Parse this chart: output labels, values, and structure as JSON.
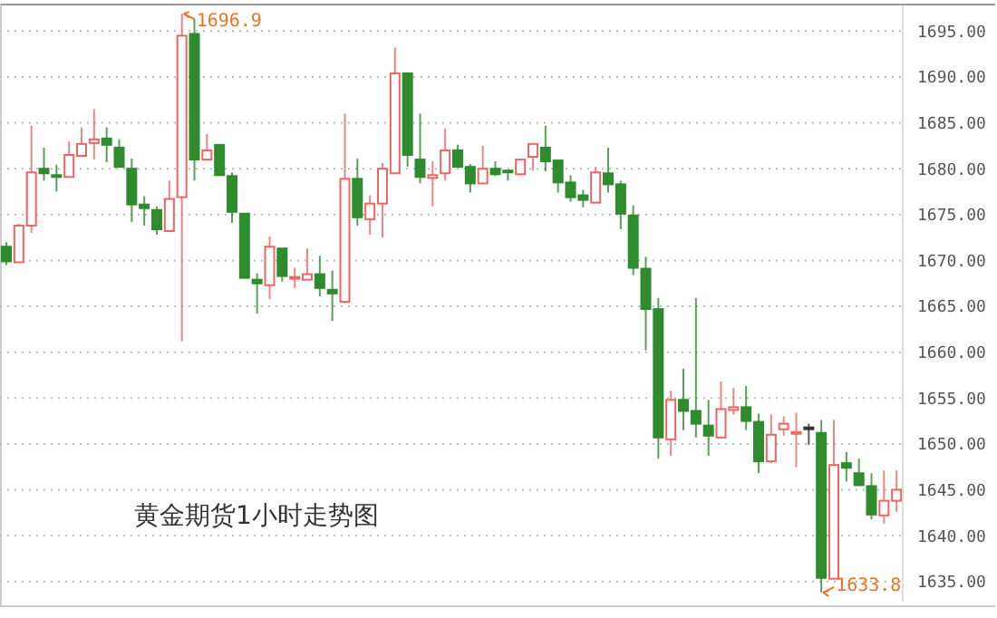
{
  "chart_data": {
    "type": "candlestick",
    "title": "黄金期货1小时走势图",
    "categories": [
      null,
      null,
      null,
      null,
      null,
      null,
      null,
      null,
      null,
      null,
      null,
      null,
      null,
      null,
      null,
      null,
      null,
      null,
      null,
      null,
      null,
      null,
      null,
      null,
      null,
      null,
      null,
      null,
      null,
      null,
      null,
      null,
      null,
      null,
      null,
      null,
      null,
      null,
      null,
      null,
      null,
      null,
      null,
      null,
      null,
      null,
      null,
      null,
      null,
      null,
      null,
      null,
      null,
      null,
      null,
      null,
      null,
      null,
      null,
      null,
      null,
      null,
      null,
      null,
      null,
      null,
      null,
      null,
      null,
      null,
      null,
      null
    ],
    "ohlc": [
      [
        1671.5,
        1672,
        1669.5,
        1669.9
      ],
      [
        1669.8,
        1674,
        1669.8,
        1673.8
      ],
      [
        1673.8,
        1684.7,
        1673,
        1679.6
      ],
      [
        1680,
        1682.3,
        1678.7,
        1679.5
      ],
      [
        1679.3,
        1680.4,
        1677.5,
        1679.1
      ],
      [
        1679.1,
        1683,
        1679.1,
        1681.5
      ],
      [
        1681.4,
        1684.5,
        1681.4,
        1682.7
      ],
      [
        1682.8,
        1686.5,
        1681,
        1683.2
      ],
      [
        1683.3,
        1684.5,
        1680.7,
        1682.6
      ],
      [
        1682.3,
        1683.2,
        1680.2,
        1680.2
      ],
      [
        1680,
        1681.1,
        1674.2,
        1676.1
      ],
      [
        1676.1,
        1677,
        1673.8,
        1675.7
      ],
      [
        1675.5,
        1675.9,
        1672.8,
        1673.4
      ],
      [
        1673.2,
        1678.7,
        1673.2,
        1676.7
      ],
      [
        1676.9,
        1696.9,
        1661.2,
        1694.5
      ],
      [
        1694.7,
        1696.3,
        1678.7,
        1681
      ],
      [
        1681,
        1683.8,
        1681,
        1682
      ],
      [
        1682.6,
        1682.6,
        1679.3,
        1679.3
      ],
      [
        1679.2,
        1679.6,
        1674.1,
        1675.3
      ],
      [
        1675.1,
        1675.1,
        1668.1,
        1668.1
      ],
      [
        1667.9,
        1668.6,
        1664.2,
        1667.5
      ],
      [
        1667.3,
        1672.6,
        1665.8,
        1671.5
      ],
      [
        1671.3,
        1671.3,
        1667.7,
        1668.3
      ],
      [
        1668,
        1669.2,
        1667,
        1668.2
      ],
      [
        1667.9,
        1671.3,
        1667.9,
        1668.5
      ],
      [
        1668.5,
        1670.5,
        1666.1,
        1667
      ],
      [
        1666.8,
        1668.9,
        1663.4,
        1666.4
      ],
      [
        1665.5,
        1686,
        1665.3,
        1678.9
      ],
      [
        1678.9,
        1681.1,
        1673.8,
        1674.7
      ],
      [
        1674.5,
        1677.1,
        1672.8,
        1676.2
      ],
      [
        1676.2,
        1680.6,
        1672.5,
        1680
      ],
      [
        1679.5,
        1693.2,
        1679.5,
        1690.4
      ],
      [
        1690.4,
        1690.4,
        1680.2,
        1681.5
      ],
      [
        1681,
        1686,
        1678.4,
        1679.1
      ],
      [
        1679,
        1680.8,
        1675.9,
        1679.3
      ],
      [
        1679.5,
        1684.4,
        1678.7,
        1682
      ],
      [
        1682,
        1682.6,
        1680.2,
        1680.2
      ],
      [
        1680.2,
        1680.5,
        1677.4,
        1678.4
      ],
      [
        1678.4,
        1682.5,
        1678.4,
        1680
      ],
      [
        1680,
        1680.8,
        1679.2,
        1679.4
      ],
      [
        1679.8,
        1679.8,
        1678.7,
        1679.6
      ],
      [
        1679.4,
        1681,
        1679.4,
        1681
      ],
      [
        1681.3,
        1682.8,
        1679.8,
        1682.7
      ],
      [
        1682.3,
        1684.7,
        1679.7,
        1680.8
      ],
      [
        1680.9,
        1680.9,
        1677.4,
        1678.5
      ],
      [
        1678.5,
        1679.3,
        1676.4,
        1676.9
      ],
      [
        1677.1,
        1677.7,
        1675.8,
        1676.6
      ],
      [
        1676.3,
        1680.2,
        1676.3,
        1679.6
      ],
      [
        1679.5,
        1682.3,
        1677.4,
        1678.3
      ],
      [
        1678.3,
        1678.7,
        1673.4,
        1675.1
      ],
      [
        1674.9,
        1676,
        1668.4,
        1669.2
      ],
      [
        1669.1,
        1670.4,
        1660.2,
        1664.7
      ],
      [
        1664.7,
        1665.9,
        1648.4,
        1650.7
      ],
      [
        1650.5,
        1655.8,
        1648.7,
        1654.8
      ],
      [
        1654.8,
        1658.2,
        1651.5,
        1653.6
      ],
      [
        1653.6,
        1665.9,
        1650.7,
        1652.2
      ],
      [
        1652,
        1654.8,
        1648.7,
        1650.9
      ],
      [
        1650.7,
        1656.8,
        1650.7,
        1653.8
      ],
      [
        1653.7,
        1656.1,
        1653.2,
        1654
      ],
      [
        1654,
        1656.3,
        1651.5,
        1652.5
      ],
      [
        1652.4,
        1653.3,
        1646.8,
        1648.1
      ],
      [
        1648.1,
        1653.2,
        1647.9,
        1651
      ],
      [
        1651.6,
        1653,
        1650.9,
        1652.2
      ],
      [
        1651.1,
        1653.4,
        1647.5,
        1651.3
      ],
      [
        1651.8,
        1652.2,
        1649.9,
        1651.8
      ],
      [
        1651.2,
        1652.6,
        1633.8,
        1635.4
      ],
      [
        1635.3,
        1652.6,
        1635.3,
        1647.7
      ],
      [
        1647.9,
        1649.1,
        1645.9,
        1647.4
      ],
      [
        1646.8,
        1648.4,
        1645.5,
        1645.5
      ],
      [
        1645.4,
        1646.8,
        1641.8,
        1642.3
      ],
      [
        1642.2,
        1647.1,
        1641.3,
        1643.8
      ],
      [
        1643.8,
        1647.1,
        1642.6,
        1645
      ]
    ],
    "colors": [
      "#2e8b2e",
      "#f06464",
      "#f06464",
      "#2e8b2e",
      "#2e8b2e",
      "#f06464",
      "#f06464",
      "#f06464",
      "#2e8b2e",
      "#2e8b2e",
      "#2e8b2e",
      "#2e8b2e",
      "#2e8b2e",
      "#f06464",
      "#f06464",
      "#2e8b2e",
      "#f06464",
      "#2e8b2e",
      "#2e8b2e",
      "#2e8b2e",
      "#2e8b2e",
      "#f06464",
      "#2e8b2e",
      "#f06464",
      "#f06464",
      "#2e8b2e",
      "#2e8b2e",
      "#f06464",
      "#2e8b2e",
      "#f06464",
      "#f06464",
      "#f06464",
      "#2e8b2e",
      "#2e8b2e",
      "#f06464",
      "#f06464",
      "#2e8b2e",
      "#2e8b2e",
      "#f06464",
      "#2e8b2e",
      "#2e8b2e",
      "#f06464",
      "#f06464",
      "#2e8b2e",
      "#2e8b2e",
      "#2e8b2e",
      "#2e8b2e",
      "#f06464",
      "#2e8b2e",
      "#2e8b2e",
      "#2e8b2e",
      "#2e8b2e",
      "#2e8b2e",
      "#f06464",
      "#2e8b2e",
      "#2e8b2e",
      "#2e8b2e",
      "#f06464",
      "#f06464",
      "#2e8b2e",
      "#2e8b2e",
      "#f06464",
      "#f06464",
      "#f06464",
      "#333333",
      "#2e8b2e",
      "#f06464",
      "#2e8b2e",
      "#2e8b2e",
      "#2e8b2e",
      "#f06464",
      "#f06464"
    ],
    "ylim": [
      1632.8,
      1697.8
    ],
    "yticks": [
      {
        "value": 1635,
        "label": "1635.00"
      },
      {
        "value": 1640,
        "label": "1640.00"
      },
      {
        "value": 1645,
        "label": "1645.00"
      },
      {
        "value": 1650,
        "label": "1650.00"
      },
      {
        "value": 1655,
        "label": "1655.00"
      },
      {
        "value": 1660,
        "label": "1660.00"
      },
      {
        "value": 1665,
        "label": "1665.00"
      },
      {
        "value": 1670,
        "label": "1670.00"
      },
      {
        "value": 1675,
        "label": "1675.00"
      },
      {
        "value": 1680,
        "label": "1680.00"
      },
      {
        "value": 1685,
        "label": "1685.00"
      },
      {
        "value": 1690,
        "label": "1690.00"
      },
      {
        "value": 1695,
        "label": "1695.00"
      }
    ],
    "grid": "y",
    "annotations": [
      "1696.9",
      "1633.8"
    ]
  }
}
